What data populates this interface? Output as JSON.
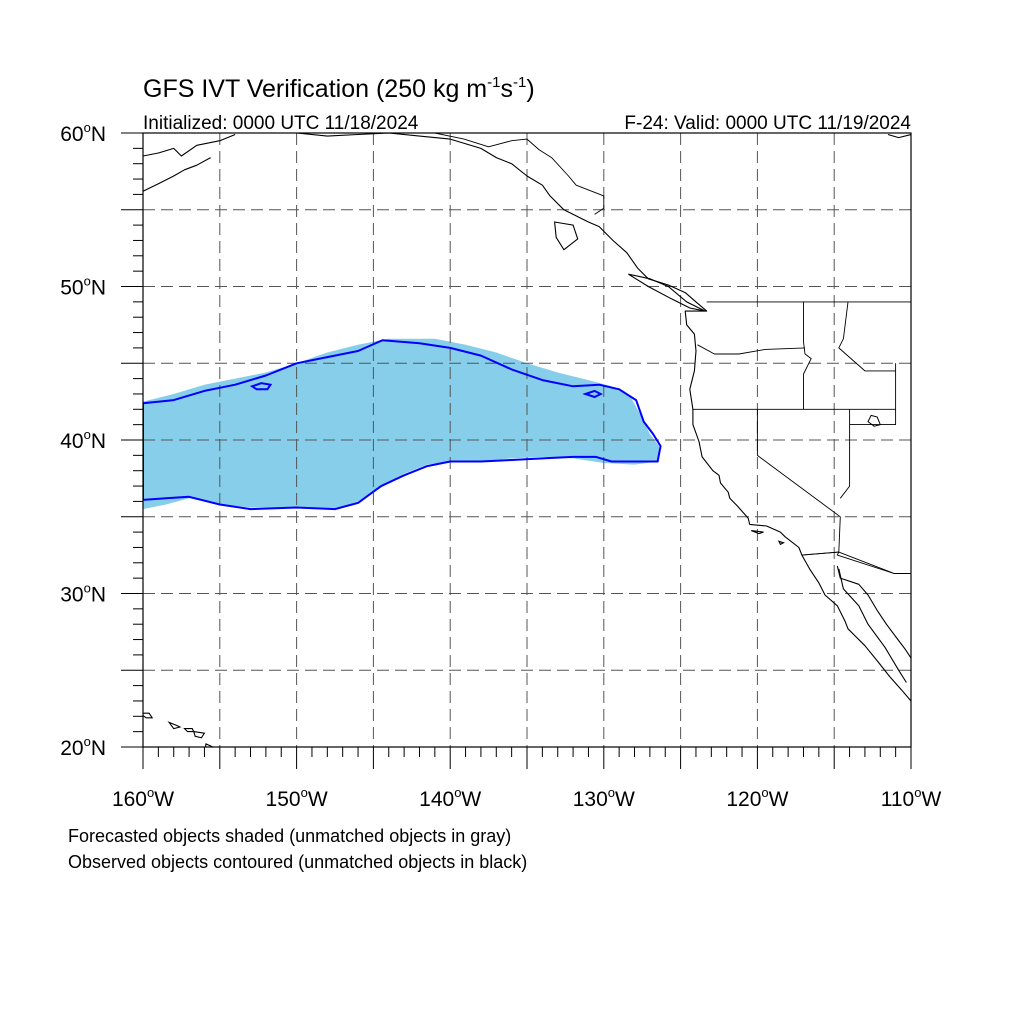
{
  "figure": {
    "title_main": "GFS IVT Verification (250 kg m",
    "title_exp1": "-1",
    "title_mid": "s",
    "title_exp2": "-1",
    "title_end": ")",
    "init_label": "Initialized: 0000 UTC 11/18/2024",
    "valid_label": "F-24: Valid: 0000 UTC 11/19/2024"
  },
  "map": {
    "projection": "cylindrical-equidistant",
    "lon_range": [
      -160,
      -110
    ],
    "lat_range": [
      20,
      60
    ],
    "grid_lines": "dashed",
    "lat_ticks": [
      {
        "value": 60,
        "label": "60",
        "suffix": "N"
      },
      {
        "value": 50,
        "label": "50",
        "suffix": "N"
      },
      {
        "value": 40,
        "label": "40",
        "suffix": "N"
      },
      {
        "value": 30,
        "label": "30",
        "suffix": "N"
      },
      {
        "value": 20,
        "label": "20",
        "suffix": "N"
      }
    ],
    "lon_ticks": [
      {
        "value": -160,
        "label": "160",
        "suffix": "W"
      },
      {
        "value": -150,
        "label": "150",
        "suffix": "W"
      },
      {
        "value": -140,
        "label": "140",
        "suffix": "W"
      },
      {
        "value": -130,
        "label": "130",
        "suffix": "W"
      },
      {
        "value": -120,
        "label": "120",
        "suffix": "W"
      },
      {
        "value": -110,
        "label": "110",
        "suffix": "W"
      }
    ],
    "degree_symbol": "o"
  },
  "colors": {
    "forecast_fill": "#87ceea",
    "observed_contour": "#0000ff",
    "coast": "#000000",
    "grid": "#555555"
  },
  "objects": {
    "forecast_object": {
      "matched": true,
      "polygon_lonlat": [
        [
          -160,
          42.5
        ],
        [
          -158,
          43.0
        ],
        [
          -156,
          43.6
        ],
        [
          -154,
          44.0
        ],
        [
          -152,
          44.4
        ],
        [
          -150,
          45.0
        ],
        [
          -148,
          45.7
        ],
        [
          -146,
          46.2
        ],
        [
          -144,
          46.6
        ],
        [
          -141,
          46.6
        ],
        [
          -139,
          46.2
        ],
        [
          -137,
          45.7
        ],
        [
          -135,
          45.0
        ],
        [
          -133,
          44.4
        ],
        [
          -131,
          43.9
        ],
        [
          -129.5,
          43.5
        ],
        [
          -128.3,
          42.9
        ],
        [
          -127.6,
          41.6
        ],
        [
          -127.0,
          40.4
        ],
        [
          -126.4,
          39.6
        ],
        [
          -126.4,
          38.6
        ],
        [
          -128,
          38.4
        ],
        [
          -130,
          38.5
        ],
        [
          -132,
          38.8
        ],
        [
          -134,
          38.9
        ],
        [
          -136,
          38.8
        ],
        [
          -138,
          38.6
        ],
        [
          -140,
          38.6
        ],
        [
          -141.5,
          38.4
        ],
        [
          -143,
          37.8
        ],
        [
          -144.5,
          36.9
        ],
        [
          -146,
          36.0
        ],
        [
          -147.5,
          35.5
        ],
        [
          -149,
          35.5
        ],
        [
          -151,
          35.6
        ],
        [
          -153,
          35.6
        ],
        [
          -155,
          35.8
        ],
        [
          -157,
          36.2
        ],
        [
          -158.5,
          35.8
        ],
        [
          -160,
          35.5
        ]
      ]
    },
    "observed_object": {
      "matched": true,
      "polygon_lonlat": [
        [
          -160,
          42.4
        ],
        [
          -158,
          42.6
        ],
        [
          -156,
          43.2
        ],
        [
          -154,
          43.6
        ],
        [
          -152,
          44.2
        ],
        [
          -150,
          45.0
        ],
        [
          -148,
          45.4
        ],
        [
          -146,
          45.8
        ],
        [
          -144.4,
          46.5
        ],
        [
          -142,
          46.3
        ],
        [
          -140,
          46.0
        ],
        [
          -138,
          45.5
        ],
        [
          -136,
          44.6
        ],
        [
          -134,
          43.9
        ],
        [
          -132,
          43.5
        ],
        [
          -130.3,
          43.6
        ],
        [
          -129,
          43.3
        ],
        [
          -127.9,
          42.6
        ],
        [
          -127.4,
          41.2
        ],
        [
          -126.8,
          40.4
        ],
        [
          -126.3,
          39.6
        ],
        [
          -126.5,
          38.6
        ],
        [
          -128,
          38.6
        ],
        [
          -129.5,
          38.6
        ],
        [
          -130.5,
          38.9
        ],
        [
          -132,
          38.9
        ],
        [
          -134,
          38.8
        ],
        [
          -136,
          38.7
        ],
        [
          -138,
          38.6
        ],
        [
          -140,
          38.6
        ],
        [
          -141.5,
          38.3
        ],
        [
          -143,
          37.7
        ],
        [
          -144.5,
          37.0
        ],
        [
          -146,
          35.9
        ],
        [
          -147.5,
          35.5
        ],
        [
          -150,
          35.6
        ],
        [
          -153,
          35.5
        ],
        [
          -155,
          35.8
        ],
        [
          -157,
          36.3
        ],
        [
          -158.5,
          36.2
        ],
        [
          -160,
          36.1
        ]
      ],
      "islands_lonlat": [
        [
          [
            -152.9,
            43.5
          ],
          [
            -152.3,
            43.7
          ],
          [
            -151.7,
            43.6
          ],
          [
            -151.9,
            43.3
          ],
          [
            -152.6,
            43.3
          ]
        ],
        [
          [
            -131.2,
            43.0
          ],
          [
            -130.6,
            43.2
          ],
          [
            -130.2,
            43.0
          ],
          [
            -130.6,
            42.8
          ]
        ]
      ]
    }
  },
  "coastlines": {
    "north_america_west": [
      [
        -150,
        60
      ],
      [
        -148,
        59.8
      ],
      [
        -146,
        59.9
      ],
      [
        -144,
        60
      ],
      [
        -142,
        59.8
      ],
      [
        -140,
        59.6
      ],
      [
        -138,
        59.0
      ],
      [
        -137,
        58.4
      ],
      [
        -136,
        58.0
      ],
      [
        -135,
        57.2
      ],
      [
        -134,
        56.6
      ],
      [
        -133.5,
        55.9
      ],
      [
        -132.6,
        55.0
      ],
      [
        -131,
        54.2
      ],
      [
        -130.3,
        53.9
      ],
      [
        -129.4,
        53.0
      ],
      [
        -128.5,
        52.2
      ],
      [
        -127.8,
        51.2
      ],
      [
        -127.1,
        50.5
      ],
      [
        -125.8,
        50.1
      ],
      [
        -124.7,
        49.6
      ],
      [
        -124.0,
        49.0
      ],
      [
        -123.3,
        48.4
      ],
      [
        -124.7,
        48.4
      ],
      [
        -124.6,
        47.5
      ],
      [
        -124.1,
        46.9
      ],
      [
        -124.0,
        45.8
      ],
      [
        -124.1,
        44.5
      ],
      [
        -124.4,
        43.3
      ],
      [
        -124.2,
        42.0
      ],
      [
        -124.2,
        41.0
      ],
      [
        -123.8,
        39.9
      ],
      [
        -123.6,
        38.9
      ],
      [
        -122.9,
        38.0
      ],
      [
        -122.5,
        37.7
      ],
      [
        -122.4,
        37.2
      ],
      [
        -121.9,
        36.6
      ],
      [
        -121.8,
        36.2
      ],
      [
        -121.3,
        35.7
      ],
      [
        -120.6,
        34.9
      ],
      [
        -120.5,
        34.5
      ],
      [
        -119.4,
        34.4
      ],
      [
        -118.5,
        34.0
      ],
      [
        -118.2,
        33.7
      ],
      [
        -117.3,
        33.0
      ],
      [
        -117.1,
        32.5
      ],
      [
        -116.6,
        31.6
      ],
      [
        -116.0,
        30.7
      ],
      [
        -115.6,
        29.9
      ],
      [
        -114.8,
        29.2
      ],
      [
        -114.3,
        28.2
      ],
      [
        -114.1,
        27.7
      ],
      [
        -113.0,
        26.6
      ],
      [
        -112.1,
        25.5
      ],
      [
        -111.4,
        24.6
      ],
      [
        -110.6,
        23.7
      ],
      [
        -110.0,
        23.0
      ]
    ],
    "gulf_of_california_east": [
      [
        -114.8,
        31.8
      ],
      [
        -114.6,
        31.0
      ],
      [
        -113.4,
        30.6
      ],
      [
        -112.8,
        29.9
      ],
      [
        -112.2,
        28.9
      ],
      [
        -111.6,
        28.0
      ],
      [
        -111.0,
        27.2
      ],
      [
        -110.4,
        26.4
      ],
      [
        -110.0,
        25.8
      ]
    ],
    "baja_inner": [
      [
        -114.7,
        31.6
      ],
      [
        -114.4,
        30.3
      ],
      [
        -113.4,
        29.2
      ],
      [
        -112.8,
        28.0
      ],
      [
        -111.7,
        26.5
      ],
      [
        -110.8,
        25.0
      ],
      [
        -110.3,
        24.2
      ]
    ],
    "hudson_bay_fragment": [
      [
        -111.5,
        59.9
      ],
      [
        -110.8,
        59.7
      ],
      [
        -110,
        59.9
      ]
    ],
    "alaska_peninsula": [
      [
        -160,
        58.5
      ],
      [
        -159,
        58.7
      ],
      [
        -158,
        59.0
      ],
      [
        -157.5,
        58.5
      ],
      [
        -156.5,
        59.2
      ],
      [
        -155,
        59.5
      ],
      [
        -154,
        59.9
      ]
    ],
    "alaska_southwest": [
      [
        -160,
        56.2
      ],
      [
        -159,
        56.7
      ],
      [
        -158,
        57.2
      ],
      [
        -157.3,
        57.6
      ],
      [
        -156.5,
        57.9
      ],
      [
        -155.6,
        58.4
      ]
    ],
    "hawaii": [
      [
        [
          -160.2,
          22.2
        ],
        [
          -159.6,
          22.2
        ],
        [
          -159.4,
          21.9
        ],
        [
          -159.8,
          21.9
        ]
      ],
      [
        [
          -158.3,
          21.6
        ],
        [
          -157.8,
          21.4
        ],
        [
          -157.6,
          21.3
        ],
        [
          -158.0,
          21.2
        ]
      ],
      [
        [
          -157.3,
          21.2
        ],
        [
          -156.8,
          21.2
        ],
        [
          -156.7,
          21.0
        ],
        [
          -157.1,
          21.0
        ]
      ],
      [
        [
          -156.7,
          21.0
        ],
        [
          -156.0,
          20.9
        ],
        [
          -156.2,
          20.6
        ],
        [
          -156.6,
          20.7
        ]
      ],
      [
        [
          -155.9,
          20.2
        ],
        [
          -155.0,
          19.8
        ],
        [
          -154.8,
          19.5
        ],
        [
          -155.6,
          18.9
        ],
        [
          -156.0,
          19.6
        ]
      ]
    ],
    "islands_misc": [
      [
        [
          -133.2,
          54.2
        ],
        [
          -132.0,
          54.0
        ],
        [
          -131.7,
          53.1
        ],
        [
          -132.6,
          52.4
        ],
        [
          -133.1,
          53.2
        ]
      ],
      [
        [
          -128.4,
          50.8
        ],
        [
          -127.0,
          50.5
        ],
        [
          -125.8,
          50.0
        ],
        [
          -124.6,
          49.0
        ],
        [
          -123.4,
          48.4
        ],
        [
          -124.4,
          48.6
        ],
        [
          -125.6,
          49.2
        ],
        [
          -127.1,
          50.0
        ]
      ],
      [
        [
          -120.4,
          34.1
        ],
        [
          -119.6,
          34.0
        ],
        [
          -119.9,
          33.9
        ]
      ],
      [
        [
          -118.6,
          33.4
        ],
        [
          -118.3,
          33.3
        ],
        [
          -118.5,
          33.2
        ]
      ]
    ]
  },
  "boundaries": {
    "canada_us_border": [
      [
        -123.3,
        49.0
      ],
      [
        -95,
        49.0
      ]
    ],
    "alaska_bc_border": [
      [
        -141,
        60
      ],
      [
        -139.1,
        59.6
      ],
      [
        -137.5,
        59.1
      ],
      [
        -136,
        59.5
      ],
      [
        -135.0,
        59.6
      ],
      [
        -134.2,
        58.9
      ],
      [
        -133.4,
        58.4
      ],
      [
        -132.3,
        57.2
      ],
      [
        -131.8,
        56.6
      ],
      [
        -130.0,
        55.9
      ],
      [
        -130.0,
        55.1
      ],
      [
        -130.6,
        54.7
      ]
    ],
    "states": [
      [
        [
          -124.2,
          42.0
        ],
        [
          -120,
          42.0
        ],
        [
          -111,
          42.0
        ]
      ],
      [
        [
          -120,
          42.0
        ],
        [
          -120,
          39.0
        ],
        [
          -114.6,
          35.0
        ],
        [
          -114.7,
          32.7
        ],
        [
          -117.1,
          32.5
        ]
      ],
      [
        [
          -117.0,
          49.0
        ],
        [
          -117.0,
          46.4
        ],
        [
          -116.9,
          45.6
        ],
        [
          -116.5,
          45.3
        ],
        [
          -117.0,
          44.3
        ],
        [
          -117.0,
          42.0
        ]
      ],
      [
        [
          -123.9,
          46.2
        ],
        [
          -122.8,
          45.6
        ],
        [
          -121.2,
          45.6
        ],
        [
          -119.5,
          45.9
        ],
        [
          -116.9,
          46.0
        ]
      ],
      [
        [
          -114.1,
          49.0
        ],
        [
          -114.4,
          46.6
        ],
        [
          -114.7,
          46.0
        ],
        [
          -113.0,
          44.5
        ],
        [
          -111.0,
          44.5
        ]
      ],
      [
        [
          -114.0,
          42.0
        ],
        [
          -114.0,
          37.0
        ],
        [
          -114.6,
          36.2
        ]
      ],
      [
        [
          -111.0,
          45.0
        ],
        [
          -111.0,
          41.0
        ],
        [
          -114.0,
          41.0
        ]
      ],
      [
        [
          -114.7,
          32.7
        ],
        [
          -111.1,
          31.3
        ],
        [
          -110,
          31.3
        ]
      ]
    ],
    "us_mexico_border": [
      [
        -117.1,
        32.5
      ],
      [
        -114.7,
        32.7
      ],
      [
        -114.8,
        32.5
      ],
      [
        -111.1,
        31.3
      ],
      [
        -110,
        31.3
      ]
    ],
    "inland_lake": [
      [
        -112.6,
        41.6
      ],
      [
        -112.2,
        41.5
      ],
      [
        -112.0,
        41.0
      ],
      [
        -112.4,
        40.9
      ],
      [
        -112.8,
        41.2
      ]
    ]
  },
  "footer": {
    "line1": "Forecasted objects shaded (unmatched objects in gray)",
    "line2": "Observed objects contoured (unmatched objects in black)"
  }
}
